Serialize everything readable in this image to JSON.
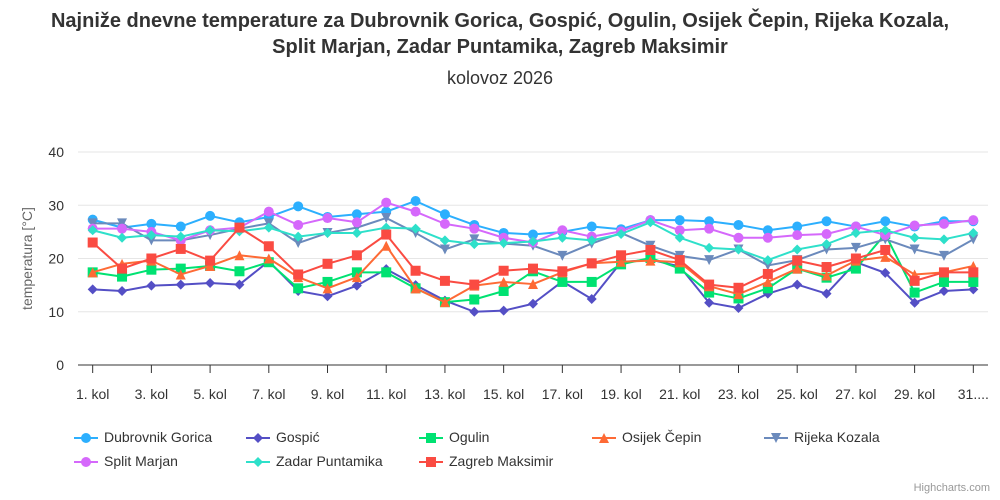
{
  "chart_data": {
    "type": "line",
    "title": "Najniže dnevne temperature za Dubrovnik Gorica, Gospić, Ogulin, Osijek Čepin, Rijeka Kozala, Split Marjan, Zadar Puntamika, Zagreb Maksimir",
    "subtitle": "kolovoz 2026",
    "ylabel": "temperatura [°C]",
    "ylim": [
      0,
      40
    ],
    "yticks": [
      0,
      10,
      20,
      30,
      40
    ],
    "grid": true,
    "legend_position": "bottom",
    "categories": [
      "1. kol",
      "2. kol",
      "3. kol",
      "4. kol",
      "5. kol",
      "6. kol",
      "7. kol",
      "8. kol",
      "9. kol",
      "10. kol",
      "11. kol",
      "12. kol",
      "13. kol",
      "14. kol",
      "15. kol",
      "16. kol",
      "17. kol",
      "18. kol",
      "19. kol",
      "20. kol",
      "21. kol",
      "22. kol",
      "23. kol",
      "24. kol",
      "25. kol",
      "26. kol",
      "27. kol",
      "28. kol",
      "29. kol",
      "30. kol",
      "31. kol"
    ],
    "xtick_labels": [
      "1. kol",
      "3. kol",
      "5. kol",
      "7. kol",
      "9. kol",
      "11. kol",
      "13. kol",
      "15. kol",
      "17. kol",
      "19. kol",
      "21. kol",
      "23. kol",
      "25. kol",
      "27. kol",
      "29. kol",
      "31...."
    ],
    "series": [
      {
        "name": "Dubrovnik Gorica",
        "color": "#2caffe",
        "marker": "circle",
        "values": [
          27.3,
          25.8,
          26.5,
          26.0,
          28.0,
          26.8,
          27.8,
          29.8,
          27.8,
          28.3,
          28.8,
          30.8,
          28.3,
          26.3,
          24.8,
          24.5,
          25.0,
          26.0,
          25.5,
          27.2,
          27.2,
          27.0,
          26.3,
          25.3,
          26.0,
          27.0,
          26.0,
          27.0,
          26.0,
          27.0,
          27.0
        ]
      },
      {
        "name": "Gospić",
        "color": "#544fc5",
        "marker": "diamond",
        "values": [
          14.2,
          13.9,
          14.9,
          15.1,
          15.4,
          15.1,
          19.5,
          13.9,
          12.9,
          14.9,
          18.0,
          15.0,
          12.1,
          10.0,
          10.2,
          11.5,
          15.7,
          12.4,
          19.3,
          19.8,
          18.5,
          11.7,
          10.7,
          13.4,
          15.1,
          13.4,
          19.3,
          17.3,
          11.7,
          13.9,
          14.2
        ]
      },
      {
        "name": "Ogulin",
        "color": "#00e272",
        "marker": "square",
        "values": [
          17.4,
          16.6,
          17.9,
          18.1,
          18.6,
          17.6,
          19.3,
          14.4,
          15.6,
          17.4,
          17.4,
          14.4,
          11.8,
          12.3,
          13.9,
          17.6,
          15.6,
          15.6,
          18.9,
          20.1,
          18.1,
          13.6,
          12.5,
          14.4,
          18.1,
          16.4,
          18.1,
          24.6,
          13.6,
          15.6,
          15.6
        ]
      },
      {
        "name": "Osijek Čepin",
        "color": "#fe6a35",
        "marker": "triangle",
        "values": [
          17.4,
          19.0,
          19.6,
          17.0,
          18.6,
          20.6,
          20.0,
          16.5,
          14.4,
          16.5,
          22.4,
          14.4,
          11.8,
          14.9,
          15.6,
          15.2,
          17.4,
          19.1,
          19.4,
          19.6,
          19.3,
          14.8,
          13.3,
          15.6,
          18.1,
          16.8,
          19.6,
          20.3,
          17.0,
          17.4,
          18.6
        ]
      },
      {
        "name": "Rijeka Kozala",
        "color": "#6b8abc",
        "marker": "triangle-down",
        "values": [
          26.6,
          26.6,
          23.4,
          23.4,
          24.4,
          25.6,
          26.6,
          22.9,
          24.8,
          25.8,
          27.6,
          24.8,
          21.7,
          23.6,
          22.8,
          22.4,
          20.5,
          22.8,
          24.8,
          22.4,
          20.5,
          19.7,
          21.7,
          18.7,
          19.7,
          21.7,
          22.0,
          23.6,
          21.7,
          20.5,
          23.6
        ]
      },
      {
        "name": "Split Marjan",
        "color": "#d568fb",
        "marker": "circle",
        "values": [
          25.6,
          25.6,
          25.0,
          23.4,
          25.3,
          25.8,
          28.8,
          26.3,
          27.6,
          26.8,
          30.5,
          28.8,
          26.5,
          25.6,
          23.9,
          23.0,
          25.3,
          24.1,
          25.1,
          27.2,
          25.3,
          25.6,
          23.9,
          23.9,
          24.4,
          24.6,
          26.0,
          24.4,
          26.2,
          26.5,
          27.2
        ]
      },
      {
        "name": "Zadar Puntamika",
        "color": "#2ee0ca",
        "marker": "diamond",
        "values": [
          25.3,
          23.9,
          24.4,
          24.1,
          25.3,
          25.1,
          25.8,
          24.1,
          24.8,
          24.8,
          25.8,
          25.6,
          23.4,
          22.7,
          22.9,
          23.2,
          23.9,
          23.4,
          24.6,
          26.8,
          23.9,
          22.0,
          21.7,
          19.7,
          21.7,
          22.7,
          24.8,
          25.3,
          23.9,
          23.6,
          24.8
        ]
      },
      {
        "name": "Zagreb Maksimir",
        "color": "#fa4b42",
        "marker": "square",
        "values": [
          23.0,
          18.1,
          20.0,
          21.8,
          19.6,
          25.8,
          22.3,
          17.0,
          19.0,
          20.6,
          24.5,
          17.7,
          15.8,
          15.1,
          17.7,
          18.1,
          17.6,
          19.1,
          20.6,
          21.6,
          19.7,
          15.1,
          14.5,
          17.1,
          19.6,
          18.4,
          20.0,
          21.6,
          15.8,
          17.4,
          17.4
        ]
      }
    ]
  },
  "credits": "Highcharts.com"
}
